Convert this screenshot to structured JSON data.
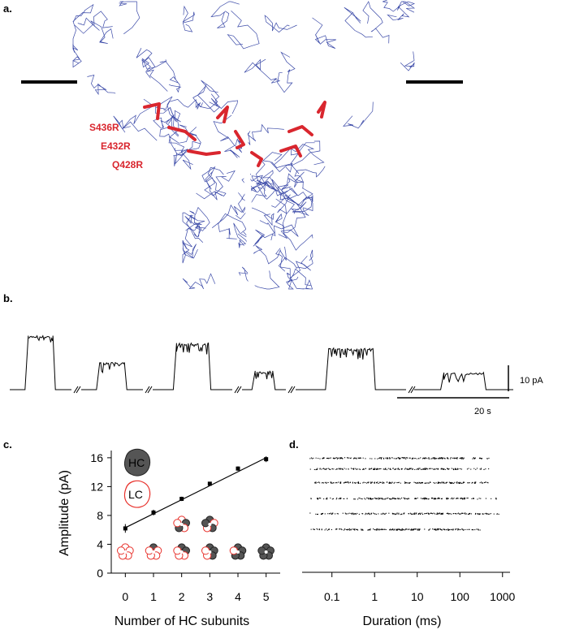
{
  "panels": {
    "a": {
      "label": "a.",
      "residues": [
        "S436R",
        "E432R",
        "Q428R"
      ],
      "colors": {
        "backbone": "#3b4aa8",
        "residue": "#d9262e"
      }
    },
    "b": {
      "label": "b.",
      "scale_current": "10 pA",
      "scale_time": "20 s",
      "segments": [
        {
          "level": 0.95,
          "type": "dense"
        },
        {
          "level": 0.48,
          "type": "dense"
        },
        {
          "level": 0.82,
          "type": "dense"
        },
        {
          "level": 0.33,
          "type": "dense"
        },
        {
          "level": 0.73,
          "type": "dense"
        },
        {
          "level": 0.3,
          "type": "sparse"
        }
      ]
    },
    "c": {
      "label": "c.",
      "legend_hc": "HC",
      "legend_lc": "LC",
      "colors": {
        "hc": "#555555",
        "lc": "#e8302a"
      }
    },
    "d": {
      "label": "d."
    }
  },
  "chart_data": [
    {
      "type": "scatter",
      "panel": "c",
      "xlabel": "Number of  HC subunits",
      "ylabel": "Amplitude (pA)",
      "x_ticks": [
        "0",
        "1",
        "2",
        "3",
        "4",
        "5"
      ],
      "y_ticks": [
        "0",
        "4",
        "8",
        "12",
        "16"
      ],
      "xlim": [
        -0.5,
        5.5
      ],
      "ylim": [
        0,
        17
      ],
      "x": [
        0,
        1,
        2,
        3,
        4,
        5
      ],
      "y": [
        6.2,
        8.4,
        10.3,
        12.4,
        14.5,
        15.8
      ],
      "error": [
        0.6,
        0.4,
        0.3,
        0.2,
        0.3,
        0.4
      ],
      "fit_line": {
        "x": [
          0,
          5
        ],
        "y": [
          6.3,
          16.0
        ]
      }
    },
    {
      "type": "scatter",
      "panel": "d",
      "xlabel": "Duration (ms)",
      "x_ticks": [
        "0.1",
        "1",
        "10",
        "100",
        "1000"
      ],
      "x_scale": "log",
      "xlim": [
        0.02,
        1500
      ],
      "ylim": [
        0,
        17
      ],
      "rows": [
        {
          "y": 16.0,
          "x_range": [
            0.03,
            500
          ]
        },
        {
          "y": 14.5,
          "x_range": [
            0.03,
            500
          ]
        },
        {
          "y": 12.6,
          "x_range": [
            0.03,
            500
          ]
        },
        {
          "y": 10.4,
          "x_range": [
            0.03,
            700
          ]
        },
        {
          "y": 8.3,
          "x_range": [
            0.03,
            800
          ]
        },
        {
          "y": 6.1,
          "x_range": [
            0.03,
            300
          ]
        }
      ]
    }
  ]
}
